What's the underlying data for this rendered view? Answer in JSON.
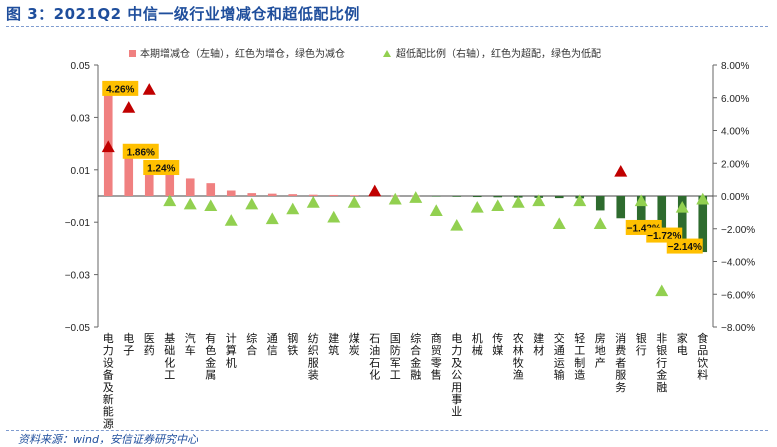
{
  "title": "图 3：2021Q2 中信一级行业增减仓和超低配比例",
  "source": "资料来源：wind，安信证券研究中心",
  "legend": {
    "bar": "本期增减仓（左轴），红色为增仓，绿色为减仓",
    "tri": "超低配比例（右轴），红色为超配，绿色为低配"
  },
  "colors": {
    "bar_pos": "#f08080",
    "bar_neg": "#2e6b2e",
    "tri_pos": "#c00000",
    "tri_neg": "#92d050",
    "label_bg": "#ffc000",
    "title": "#1f4e9c"
  },
  "chart_data": {
    "type": "bar",
    "y_left": {
      "min": -0.05,
      "max": 0.05,
      "ticks": [
        "0.05",
        "0.03",
        "0.01",
        "−0.01",
        "−0.03",
        "−0.05"
      ]
    },
    "y_right": {
      "min": -8,
      "max": 8,
      "ticks": [
        "8.00%",
        "6.00%",
        "4.00%",
        "2.00%",
        "0.00%",
        "−2.00%",
        "−4.00%",
        "−6.00%",
        "−8.00%"
      ]
    },
    "categories": [
      "电力设备及新能源",
      "电子",
      "医药",
      "基础化工",
      "汽车",
      "有色金属",
      "计算机",
      "综合",
      "通信",
      "钢铁",
      "纺织服装",
      "建筑",
      "煤炭",
      "石油石化",
      "国防军工",
      "综合金融",
      "商贸零售",
      "电力及公用事业",
      "机械",
      "传媒",
      "农林牧渔",
      "建材",
      "交通运输",
      "轻工制造",
      "房地产",
      "消费者服务",
      "银行",
      "非银行金融",
      "家电",
      "食品饮料"
    ],
    "series": [
      {
        "name": "本期增减仓（左轴），红色为增仓，绿色为减仓",
        "axis": "left",
        "values": [
          0.0426,
          0.0186,
          0.0124,
          0.0104,
          0.0067,
          0.0049,
          0.0021,
          0.0011,
          0.0009,
          0.0007,
          0.0005,
          0.0004,
          0.0003,
          0.0002,
          0.0001,
          0.0001,
          -0.0001,
          -0.0003,
          -0.0004,
          -0.0005,
          -0.0006,
          -0.0007,
          -0.0008,
          -0.0009,
          -0.0055,
          -0.0085,
          -0.011,
          -0.0143,
          -0.0172,
          -0.0214
        ]
      },
      {
        "name": "超低配比例（右轴），红色为超配，绿色为低配",
        "axis": "right",
        "values": [
          3.0,
          5.4,
          6.5,
          -0.3,
          -0.5,
          -0.6,
          -1.5,
          -0.5,
          -1.4,
          -0.8,
          -0.4,
          -1.3,
          -0.4,
          0.3,
          -0.2,
          -0.1,
          -0.9,
          -1.8,
          -0.7,
          -0.6,
          -0.4,
          -0.3,
          -1.7,
          -0.3,
          -1.7,
          1.5,
          -0.3,
          -5.8,
          -0.7,
          -0.2
        ]
      }
    ],
    "data_labels": [
      {
        "index": 0,
        "text": "4.26%"
      },
      {
        "index": 1,
        "text": "1.86%"
      },
      {
        "index": 2,
        "text": "1.24%"
      },
      {
        "index": 27,
        "text": "−1.43%"
      },
      {
        "index": 28,
        "text": "−1.72%"
      },
      {
        "index": 29,
        "text": "−2.14%"
      }
    ]
  }
}
